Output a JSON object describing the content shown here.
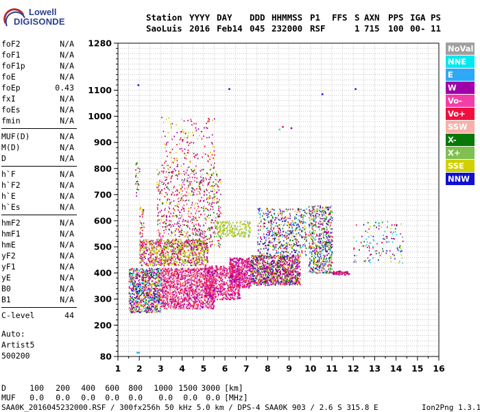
{
  "logo": {
    "line1": "Lowell",
    "line2": "DIGISONDE"
  },
  "header": {
    "labels": [
      "Station",
      "YYYY",
      "DAY",
      "DDD",
      "HHMMSS",
      "P1",
      "FFS",
      "S",
      "AXN",
      "PPS",
      "IGA",
      "PS"
    ],
    "values": [
      "SaoLuis",
      "2016",
      "Feb14",
      "045",
      "232000",
      "RSF",
      "",
      "1",
      "715",
      "100",
      "00-",
      "11"
    ]
  },
  "params": [
    {
      "name": "foF2",
      "value": "N/A"
    },
    {
      "name": "foF1",
      "value": "N/A"
    },
    {
      "name": "foF1p",
      "value": "N/A"
    },
    {
      "name": "foE",
      "value": "N/A"
    },
    {
      "name": "foEp",
      "value": "0.43"
    },
    {
      "name": "fxI",
      "value": "N/A"
    },
    {
      "name": "foEs",
      "value": "N/A"
    },
    {
      "name": "fmin",
      "value": "N/A"
    },
    {
      "name": "MUF(D)",
      "value": "N/A"
    },
    {
      "name": "M(D)",
      "value": "N/A"
    },
    {
      "name": "D",
      "value": "N/A"
    },
    {
      "name": "h`F",
      "value": "N/A"
    },
    {
      "name": "h`F2",
      "value": "N/A"
    },
    {
      "name": "h`E",
      "value": "N/A"
    },
    {
      "name": "h`Es",
      "value": "N/A"
    },
    {
      "name": "hmF2",
      "value": "N/A"
    },
    {
      "name": "hmF1",
      "value": "N/A"
    },
    {
      "name": "hmE",
      "value": "N/A"
    },
    {
      "name": "yF2",
      "value": "N/A"
    },
    {
      "name": "yF1",
      "value": "N/A"
    },
    {
      "name": "yE",
      "value": "N/A"
    },
    {
      "name": "B0",
      "value": "N/A"
    },
    {
      "name": "B1",
      "value": "N/A"
    },
    {
      "name": "C-level",
      "value": "44"
    }
  ],
  "auto": {
    "line1": "Auto:",
    "line2": "Artist5",
    "line3": "500200"
  },
  "legend": [
    {
      "label": "NoVal",
      "color": "#a0a0a0"
    },
    {
      "label": "NNE",
      "color": "#00e8f0"
    },
    {
      "label": "E",
      "color": "#30a8f8"
    },
    {
      "label": "W",
      "color": "#a000a8"
    },
    {
      "label": "Vo-",
      "color": "#f040a8"
    },
    {
      "label": "Vo+",
      "color": "#f01040"
    },
    {
      "label": "SSW",
      "color": "#f8b0a8"
    },
    {
      "label": "X-",
      "color": "#087808"
    },
    {
      "label": "X+",
      "color": "#80c050"
    },
    {
      "label": "SSE",
      "color": "#d0d000"
    },
    {
      "label": "NNW",
      "color": "#1010d0"
    }
  ],
  "table": {
    "row1_label": "D",
    "row1_values": [
      "100",
      "200",
      "400",
      "600",
      "800",
      "1000",
      "1500",
      "3000",
      "[km]"
    ],
    "row2_label": "MUF",
    "row2_values": [
      "0.0",
      "0.0",
      "0.0",
      "0.0",
      "0.0",
      "0.0",
      "0.0",
      "0.0",
      "[MHz]"
    ]
  },
  "footer": {
    "text": "SAA0K_2016045232000.RSF / 300fx256h 50 kHz 5.0 km / DPS-4 SAA0K 903 / 2.6 S 315.8 E",
    "version": "Ion2Png 1.3.17"
  },
  "chart_data": {
    "type": "scatter",
    "xlim": [
      1,
      16
    ],
    "ylim": [
      80,
      1280
    ],
    "xticks": [
      1,
      2,
      3,
      4,
      5,
      6,
      7,
      8,
      9,
      10,
      11,
      12,
      13,
      14,
      15,
      16
    ],
    "yticks": [
      80,
      200,
      300,
      400,
      500,
      600,
      700,
      800,
      900,
      1000,
      1100,
      1280
    ],
    "grid": true,
    "legend_position": "right",
    "clusters": [
      {
        "x": [
          1.5,
          3.0
        ],
        "y": [
          250,
          420
        ],
        "n": 900,
        "colors": [
          "#f01040",
          "#f040a8",
          "#a000a8",
          "#d0d000",
          "#00e8f0",
          "#087808",
          "#1010d0"
        ]
      },
      {
        "x": [
          3.0,
          5.5
        ],
        "y": [
          265,
          420
        ],
        "n": 1500,
        "colors": [
          "#f01040",
          "#f040a8",
          "#a000a8",
          "#f8b0a8"
        ]
      },
      {
        "x": [
          5.0,
          6.7
        ],
        "y": [
          300,
          430
        ],
        "n": 600,
        "colors": [
          "#f01040",
          "#f040a8",
          "#a000a8"
        ]
      },
      {
        "x": [
          2.0,
          5.2
        ],
        "y": [
          430,
          530
        ],
        "n": 900,
        "colors": [
          "#d0d000",
          "#80c050",
          "#a000a8",
          "#f01040"
        ]
      },
      {
        "x": [
          2.8,
          5.8
        ],
        "y": [
          500,
          800
        ],
        "n": 700,
        "colors": [
          "#d0d000",
          "#f01040",
          "#a000a8",
          "#087808",
          "#f040a8"
        ]
      },
      {
        "x": [
          3.0,
          5.5
        ],
        "y": [
          800,
          1000
        ],
        "n": 160,
        "colors": [
          "#d0d000",
          "#f01040",
          "#a000a8"
        ]
      },
      {
        "x": [
          6.2,
          7.2
        ],
        "y": [
          345,
          460
        ],
        "n": 500,
        "colors": [
          "#f01040",
          "#f040a8",
          "#a000a8"
        ]
      },
      {
        "x": [
          7.2,
          9.5
        ],
        "y": [
          355,
          470
        ],
        "n": 1100,
        "colors": [
          "#f01040",
          "#f040a8",
          "#a000a8",
          "#d0d000",
          "#087808",
          "#1010d0"
        ]
      },
      {
        "x": [
          7.5,
          9.8
        ],
        "y": [
          470,
          650
        ],
        "n": 500,
        "colors": [
          "#d0d000",
          "#f01040",
          "#a000a8",
          "#087808",
          "#1010d0",
          "#30a8f8"
        ]
      },
      {
        "x": [
          9.9,
          11.0
        ],
        "y": [
          400,
          660
        ],
        "n": 600,
        "colors": [
          "#d0d000",
          "#f01040",
          "#a000a8",
          "#087808",
          "#1010d0",
          "#80c050",
          "#30a8f8"
        ]
      },
      {
        "x": [
          11.0,
          11.8
        ],
        "y": [
          395,
          410
        ],
        "n": 60,
        "colors": [
          "#f01040",
          "#a000a8"
        ]
      },
      {
        "x": [
          12.0,
          14.3
        ],
        "y": [
          440,
          600
        ],
        "n": 130,
        "colors": [
          "#f01040",
          "#087808",
          "#d0d000",
          "#30a8f8",
          "#1010d0",
          "#00e8f0",
          "#a000a8"
        ]
      },
      {
        "x": [
          5.5,
          7.2
        ],
        "y": [
          540,
          600
        ],
        "n": 200,
        "colors": [
          "#d0d000",
          "#80c050"
        ]
      },
      {
        "x": [
          1.8,
          2.0
        ],
        "y": [
          690,
          840
        ],
        "n": 25,
        "colors": [
          "#d0d000",
          "#087808",
          "#a000a8"
        ]
      },
      {
        "x": [
          2.0,
          2.2
        ],
        "y": [
          500,
          660
        ],
        "n": 40,
        "colors": [
          "#f01040",
          "#a000a8",
          "#d0d000"
        ]
      }
    ],
    "points": [
      {
        "x": 1.95,
        "y": 1120,
        "color": "#1010d0"
      },
      {
        "x": 6.2,
        "y": 1105,
        "color": "#1010d0"
      },
      {
        "x": 10.55,
        "y": 1085,
        "color": "#1010d0"
      },
      {
        "x": 12.1,
        "y": 1105,
        "color": "#1010d0"
      },
      {
        "x": 1.9,
        "y": 95,
        "color": "#30a8f8"
      },
      {
        "x": 1.98,
        "y": 95,
        "color": "#30a8f8"
      },
      {
        "x": 9.1,
        "y": 955,
        "color": "#a000a8"
      },
      {
        "x": 8.7,
        "y": 960,
        "color": "#f01040"
      },
      {
        "x": 8.55,
        "y": 950,
        "color": "#00e8f0"
      }
    ]
  }
}
